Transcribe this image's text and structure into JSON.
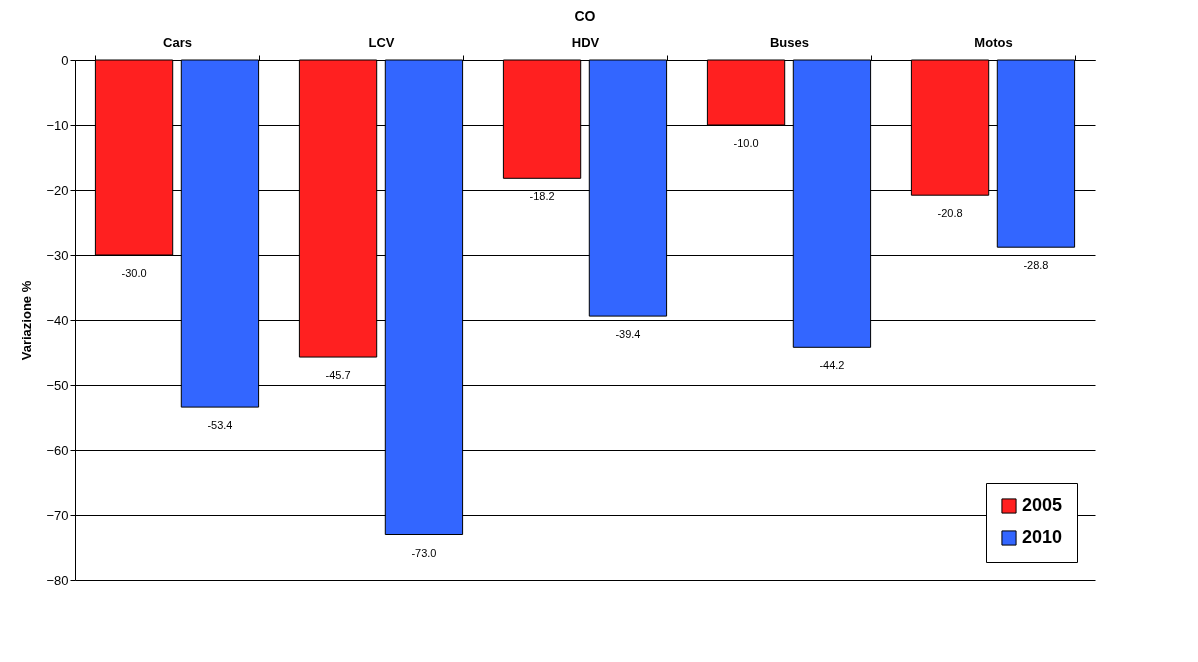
{
  "chart_data": {
    "type": "bar",
    "title": "CO",
    "ylabel": "Variazione %",
    "categories": [
      "Cars",
      "LCV",
      "HDV",
      "Buses",
      "Motos"
    ],
    "series": [
      {
        "name": "2005",
        "color": "#ff2020",
        "values": [
          -30.0,
          -45.7,
          -18.2,
          -10.0,
          -20.8
        ],
        "value_labels": [
          "-30.0",
          "-45.7",
          "-18.2",
          "-10.0",
          "-20.8"
        ]
      },
      {
        "name": "2010",
        "color": "#3366ff",
        "values": [
          -53.4,
          -73.0,
          -39.4,
          -44.2,
          -28.8
        ],
        "value_labels": [
          "-53.4",
          "-73.0",
          "-39.4",
          "-44.2",
          "-28.8"
        ]
      }
    ],
    "ylim": [
      -80,
      0
    ],
    "yticks": [
      -80,
      -70,
      -60,
      -50,
      -40,
      -30,
      -20,
      -10,
      0
    ],
    "grid": "y",
    "legend": "bottom right"
  }
}
